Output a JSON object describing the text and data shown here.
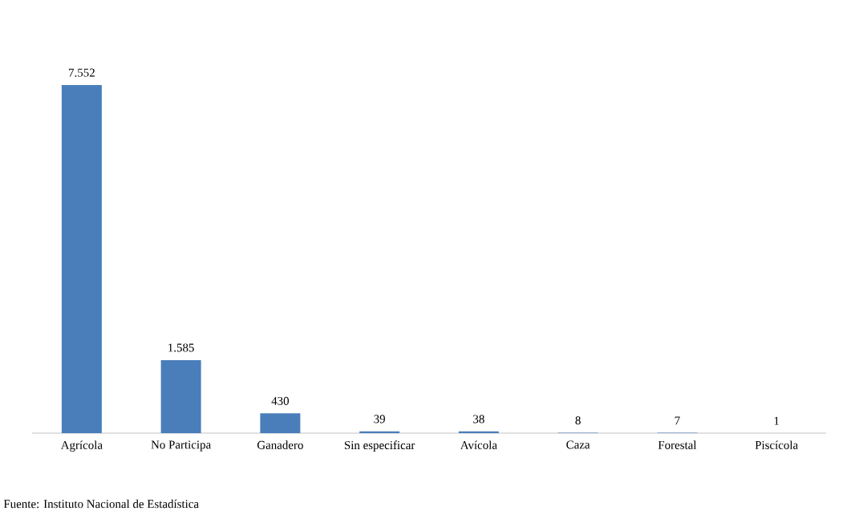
{
  "chart_data": {
    "type": "bar",
    "categories": [
      "Agrícola",
      "No Participa",
      "Ganadero",
      "Sin especificar",
      "Avícola",
      "Caza",
      "Forestal",
      "Piscícola"
    ],
    "values": [
      7552,
      1585,
      430,
      39,
      38,
      8,
      7,
      1
    ],
    "value_labels": [
      "7.552",
      "1.585",
      "430",
      "39",
      "38",
      "8",
      "7",
      "1"
    ],
    "color": "#4a7ebb",
    "annotations": [
      "Fuente: Instituto Nacional de Estadística"
    ]
  }
}
